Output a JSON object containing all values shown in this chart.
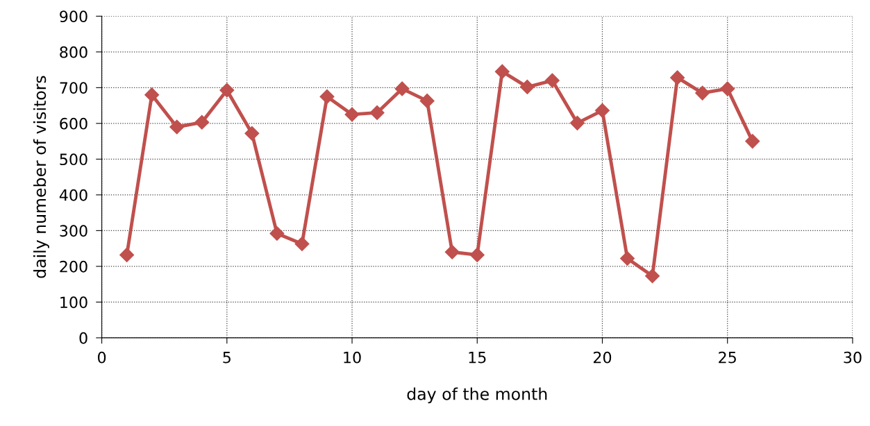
{
  "chart_data": {
    "type": "line",
    "xlabel": "day of the month",
    "ylabel": "daily numeber of visitors",
    "x": [
      1,
      2,
      3,
      4,
      5,
      6,
      7,
      8,
      9,
      10,
      11,
      12,
      13,
      14,
      15,
      16,
      17,
      18,
      19,
      20,
      21,
      22,
      23,
      24,
      25,
      26
    ],
    "series": [
      {
        "color": "#c0504d",
        "values": [
          232,
          680,
          590,
          603,
          693,
          572,
          292,
          263,
          675,
          625,
          630,
          697,
          663,
          240,
          232,
          745,
          702,
          720,
          601,
          636,
          222,
          173,
          728,
          685,
          697,
          550
        ]
      }
    ],
    "xlim": [
      0,
      30
    ],
    "xticks": [
      0,
      5,
      10,
      15,
      20,
      25,
      30
    ],
    "ylim": [
      0,
      900
    ],
    "yticks": [
      0,
      100,
      200,
      300,
      400,
      500,
      600,
      700,
      800,
      900
    ],
    "grid": true,
    "marker": "diamond",
    "line_style": "solid"
  }
}
